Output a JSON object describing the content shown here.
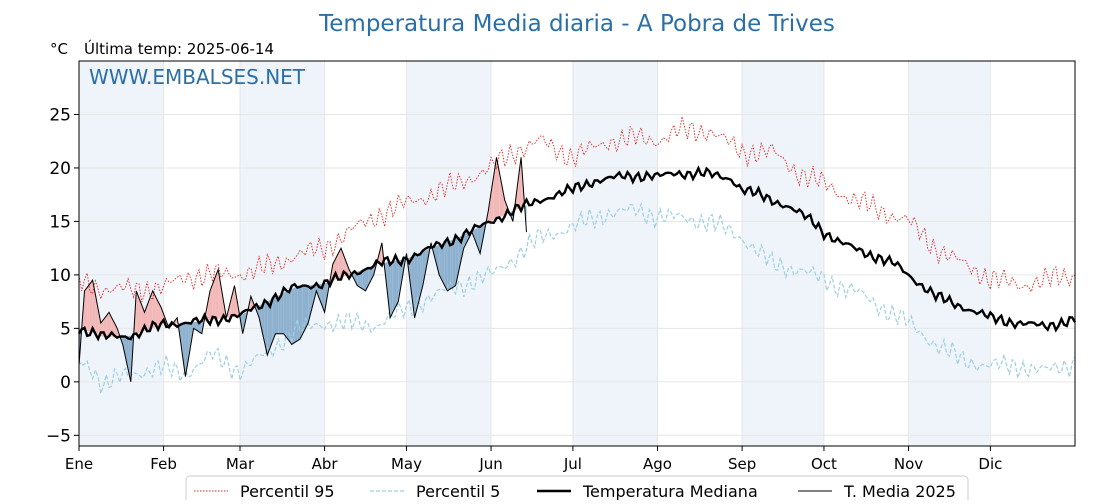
{
  "chart_data": {
    "type": "line",
    "title": "Temperatura Media diaria - A Pobra de Trives",
    "subtitle": "Última temp: 2025-06-14",
    "ylabel": "°C",
    "watermark": "WWW.EMBALSES.NET",
    "xlim": [
      1,
      366
    ],
    "ylim": [
      -6,
      30
    ],
    "yticks": [
      -5,
      0,
      5,
      10,
      15,
      20,
      25
    ],
    "yticks_labels": [
      "−5",
      "0",
      "5",
      "10",
      "15",
      "20",
      "25"
    ],
    "months": [
      "Ene",
      "Feb",
      "Mar",
      "Abr",
      "May",
      "Jun",
      "Jul",
      "Ago",
      "Sep",
      "Oct",
      "Nov",
      "Dic"
    ],
    "month_start_days": [
      1,
      32,
      60,
      91,
      121,
      152,
      182,
      213,
      244,
      274,
      305,
      335
    ],
    "grid": true,
    "legend_position": "bottom",
    "colors": {
      "title": "#2a6fa8",
      "p95": "#e0201b",
      "p5": "#9ecfe0",
      "median": "#000000",
      "t2025": "#000000",
      "above_fill": "#f2b8b8",
      "below_fill": "#8eb1cf",
      "band": "#eef4fa",
      "grid": "#e6e6e6"
    },
    "series": [
      {
        "name": "Percentil 95",
        "style": "dotted",
        "x": [
          1,
          10,
          20,
          32,
          40,
          50,
          60,
          70,
          80,
          91,
          100,
          110,
          121,
          135,
          152,
          160,
          170,
          182,
          195,
          205,
          213,
          222,
          232,
          244,
          255,
          265,
          274,
          285,
          295,
          305,
          315,
          325,
          335,
          345,
          355,
          366
        ],
        "y": [
          9.3,
          8.7,
          8.6,
          8.8,
          9.8,
          10.0,
          10.1,
          10.7,
          11.8,
          12.5,
          14.0,
          15.5,
          16.7,
          18.0,
          20.0,
          21.5,
          22.5,
          21.0,
          22.5,
          22.8,
          22.6,
          23.5,
          23.5,
          21.5,
          21.5,
          19.5,
          18.5,
          17.0,
          16.0,
          15.0,
          12.5,
          11.0,
          9.7,
          9.0,
          9.5,
          10.0
        ]
      },
      {
        "name": "Percentil 5",
        "style": "dashed",
        "x": [
          1,
          5,
          10,
          20,
          32,
          40,
          50,
          60,
          70,
          80,
          91,
          100,
          110,
          121,
          135,
          152,
          160,
          170,
          182,
          195,
          205,
          213,
          222,
          232,
          244,
          255,
          265,
          274,
          285,
          295,
          305,
          315,
          325,
          335,
          345,
          355,
          366
        ],
        "y": [
          1.8,
          1.5,
          -0.3,
          0.8,
          1.3,
          0.8,
          2.5,
          1.0,
          2.7,
          4.8,
          5.5,
          5.5,
          5.3,
          6.8,
          8.5,
          10.0,
          11.5,
          13.5,
          14.5,
          15.8,
          16.0,
          15.5,
          15.3,
          15.0,
          13.5,
          11.0,
          10.5,
          9.5,
          8.5,
          7.0,
          5.5,
          3.5,
          2.0,
          1.5,
          1.5,
          1.0,
          1.8
        ]
      },
      {
        "name": "Temperatura Mediana",
        "style": "bold",
        "x": [
          1,
          5,
          10,
          20,
          32,
          40,
          50,
          60,
          70,
          75,
          80,
          85,
          91,
          100,
          110,
          121,
          130,
          140,
          152,
          160,
          170,
          182,
          190,
          200,
          210,
          213,
          220,
          230,
          240,
          244,
          250,
          260,
          270,
          274,
          280,
          290,
          300,
          305,
          315,
          325,
          335,
          345,
          355,
          366
        ],
        "y": [
          5.0,
          4.7,
          4.2,
          4.3,
          5.4,
          5.5,
          5.8,
          6.2,
          7.5,
          8.2,
          8.8,
          9.0,
          9.2,
          10.0,
          11.0,
          11.5,
          12.5,
          13.5,
          15.0,
          16.0,
          17.0,
          18.0,
          18.8,
          19.2,
          19.3,
          19.2,
          19.5,
          19.5,
          19.0,
          18.0,
          17.5,
          16.5,
          15.0,
          14.0,
          13.0,
          12.0,
          11.0,
          10.0,
          8.0,
          7.0,
          6.0,
          5.5,
          5.2,
          5.8
        ]
      },
      {
        "name": "T. Media 2025",
        "style": "thin",
        "x": [
          1,
          3,
          6,
          9,
          12,
          15,
          17,
          20,
          22,
          25,
          28,
          31,
          34,
          37,
          40,
          43,
          46,
          49,
          52,
          55,
          58,
          61,
          64,
          67,
          70,
          73,
          76,
          79,
          82,
          85,
          88,
          91,
          94,
          97,
          100,
          103,
          106,
          109,
          112,
          115,
          118,
          121,
          124,
          127,
          130,
          133,
          136,
          139,
          142,
          145,
          148,
          151,
          154,
          157,
          160,
          163,
          165
        ],
        "y": [
          1.5,
          8.5,
          9.5,
          5.5,
          6.5,
          5.0,
          3.5,
          0.0,
          8.5,
          6.5,
          8.5,
          7.0,
          5.0,
          6.0,
          0.5,
          5.0,
          4.5,
          8.5,
          10.5,
          6.0,
          9.0,
          4.5,
          8.0,
          6.0,
          2.5,
          4.5,
          4.5,
          3.5,
          4.0,
          5.5,
          8.5,
          6.5,
          11.0,
          12.5,
          10.5,
          9.0,
          8.5,
          10.0,
          13.0,
          6.0,
          7.5,
          12.0,
          6.0,
          9.0,
          13.0,
          10.0,
          8.5,
          9.0,
          12.5,
          14.0,
          12.0,
          16.0,
          21.0,
          17.0,
          15.0,
          21.0,
          14.0
        ]
      }
    ],
    "legend": [
      "Percentil 95",
      "Percentil 5",
      "Temperatura Mediana",
      "T. Media 2025"
    ]
  }
}
